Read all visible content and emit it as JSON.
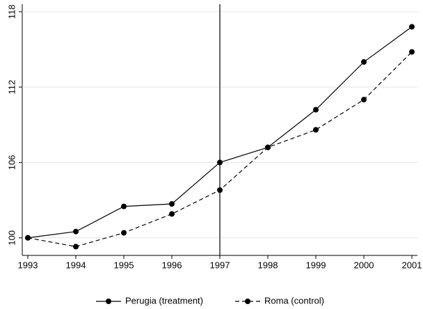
{
  "chart_data": {
    "type": "line",
    "x": [
      1993,
      1994,
      1995,
      1996,
      1997,
      1998,
      1999,
      2000,
      2001
    ],
    "series": [
      {
        "name": "Perugia (treatment)",
        "color": "#000000",
        "dash": "solid",
        "values": [
          100,
          100.5,
          102.5,
          102.7,
          106,
          107.2,
          110.2,
          114,
          116.8
        ]
      },
      {
        "name": "Roma (control)",
        "color": "#000000",
        "dash": "dashed",
        "values": [
          100,
          99.3,
          100.4,
          101.9,
          103.8,
          107.2,
          108.6,
          111,
          114.8
        ]
      }
    ],
    "xlim": [
      1993,
      2001
    ],
    "xticks": [
      1993,
      1994,
      1995,
      1996,
      1997,
      1998,
      1999,
      2000,
      2001
    ],
    "ylim": [
      98.6,
      118.6
    ],
    "yticks": [
      100,
      106,
      112,
      118
    ],
    "vline": 1997,
    "grid": true,
    "legend": "bottom"
  }
}
